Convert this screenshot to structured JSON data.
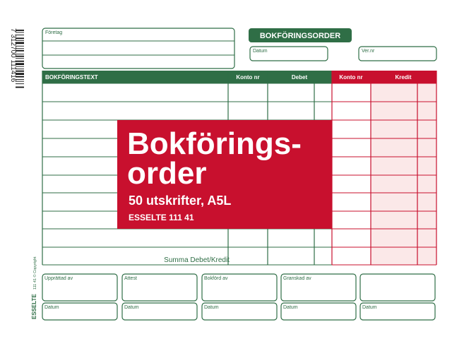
{
  "barcode_digits": "7 312700 111416",
  "header": {
    "company_label": "Företag",
    "form_title": "BOKFÖRINGSORDER",
    "date_label": "Datum",
    "voucher_label": "Ver.nr"
  },
  "table": {
    "columns": [
      "BOKFÖRINGSTEXT",
      "Konto nr",
      "Debet",
      "Konto nr",
      "Kredit"
    ],
    "sum_label": "Summa Debet/Kredit"
  },
  "product_label": {
    "title_line1": "Bokförings-",
    "title_line2": "order",
    "subtitle": "50 utskrifter, A5L",
    "article": "ESSELTE 111 41"
  },
  "signatures": [
    {
      "label": "Upprättad av",
      "date_label": "Datum"
    },
    {
      "label": "Attest",
      "date_label": "Datum"
    },
    {
      "label": "Bokförd av",
      "date_label": "Datum"
    },
    {
      "label": "Granskad av",
      "date_label": "Datum"
    },
    {
      "date_label": "Datum"
    }
  ],
  "side_text": {
    "brand": "ESSELTE",
    "copyright": "111 41 © Copyright"
  }
}
